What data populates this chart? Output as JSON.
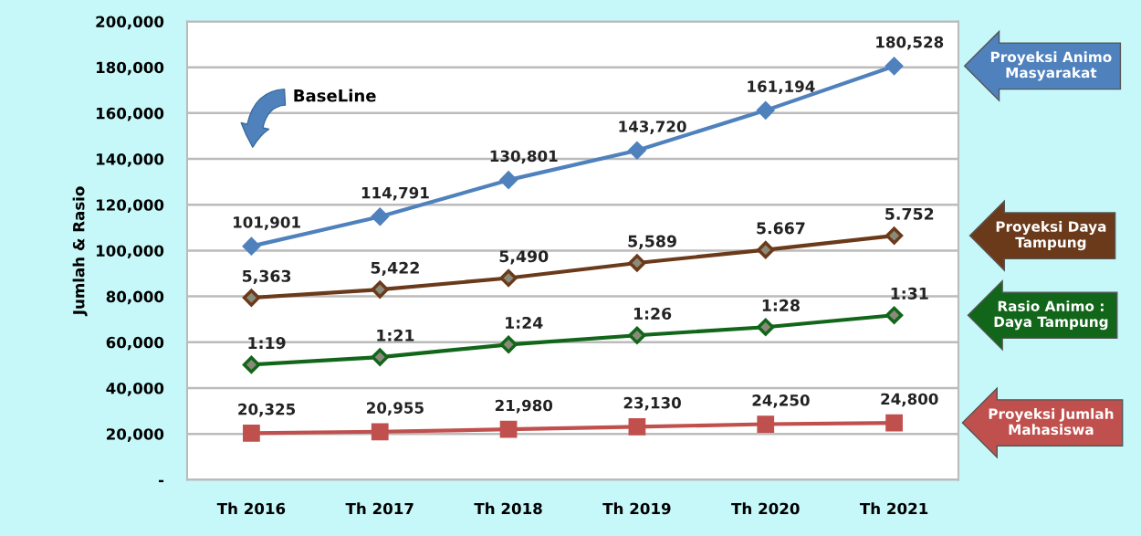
{
  "chart_data": {
    "type": "line",
    "ylabel": "Jumlah & Rasio",
    "categories": [
      "Th 2016",
      "Th 2017",
      "Th 2018",
      "Th 2019",
      "Th 2020",
      "Th 2021"
    ],
    "series": [
      {
        "name": "Proyeksi Animo\nMasyarakat",
        "color": "#4f81bd",
        "marker": "diamond",
        "values": [
          101901,
          114791,
          130801,
          143720,
          161194,
          180528
        ],
        "value_labels": [
          "101,901",
          "114,791",
          "130,801",
          "143,720",
          "161,194",
          "180,528"
        ]
      },
      {
        "name": "Proyeksi Daya\nTampung",
        "color": "#6b3a1a",
        "marker": "diamond",
        "values": [
          79400,
          83000,
          88000,
          94600,
          100300,
          106500
        ]
      },
      {
        "name": "Rasio Animo :\nDaya Tampung",
        "color": "#12661a",
        "marker": "diamond",
        "values": [
          50200,
          53500,
          59000,
          63000,
          66600,
          71800
        ]
      },
      {
        "name": "Proyeksi Jumlah\nMahasiswa",
        "color": "#c0504d",
        "marker": "square",
        "values": [
          20325,
          20955,
          21980,
          23130,
          24250,
          24800
        ],
        "value_labels": [
          "20,325",
          "20,955",
          "21,980",
          "23,130",
          "24,250",
          "24,800"
        ]
      }
    ],
    "ylim": [
      0,
      200000
    ],
    "yticks": [
      {
        "value": 0,
        "label": "-"
      },
      {
        "value": 20000,
        "label": "20,000"
      },
      {
        "value": 40000,
        "label": "40,000"
      },
      {
        "value": 60000,
        "label": "60,000"
      },
      {
        "value": 80000,
        "label": "80,000"
      },
      {
        "value": 100000,
        "label": "100,000"
      },
      {
        "value": 120000,
        "label": "120,000"
      },
      {
        "value": 140000,
        "label": "140,000"
      },
      {
        "value": 160000,
        "label": "160,000"
      },
      {
        "value": 180000,
        "label": "180,000"
      },
      {
        "value": 200000,
        "label": "200,000"
      }
    ],
    "grid": "y",
    "legend": "right",
    "line_style": "solid",
    "annotations": [
      "BaseLine",
      {
        "text": "5,363",
        "x": "Th 2016",
        "y": 79400
      },
      {
        "text": "5,422",
        "x": "Th 2017",
        "y": 83000
      },
      {
        "text": "5,490",
        "x": "Th 2018",
        "y": 88000
      },
      {
        "text": "5,589",
        "x": "Th 2019",
        "y": 94600
      },
      {
        "text": "5.667",
        "x": "Th 2020",
        "y": 100300
      },
      {
        "text": "5.752",
        "x": "Th 2021",
        "y": 106500
      },
      {
        "text": "1:19",
        "x": "Th 2016",
        "y": 50200
      },
      {
        "text": "1:21",
        "x": "Th 2017",
        "y": 53500
      },
      {
        "text": "1:24",
        "x": "Th 2018",
        "y": 59000
      },
      {
        "text": "1:26",
        "x": "Th 2019",
        "y": 63000
      },
      {
        "text": "1:28",
        "x": "Th 2020",
        "y": 66600
      },
      {
        "text": "1:31",
        "x": "Th 2021",
        "y": 71800
      }
    ]
  }
}
